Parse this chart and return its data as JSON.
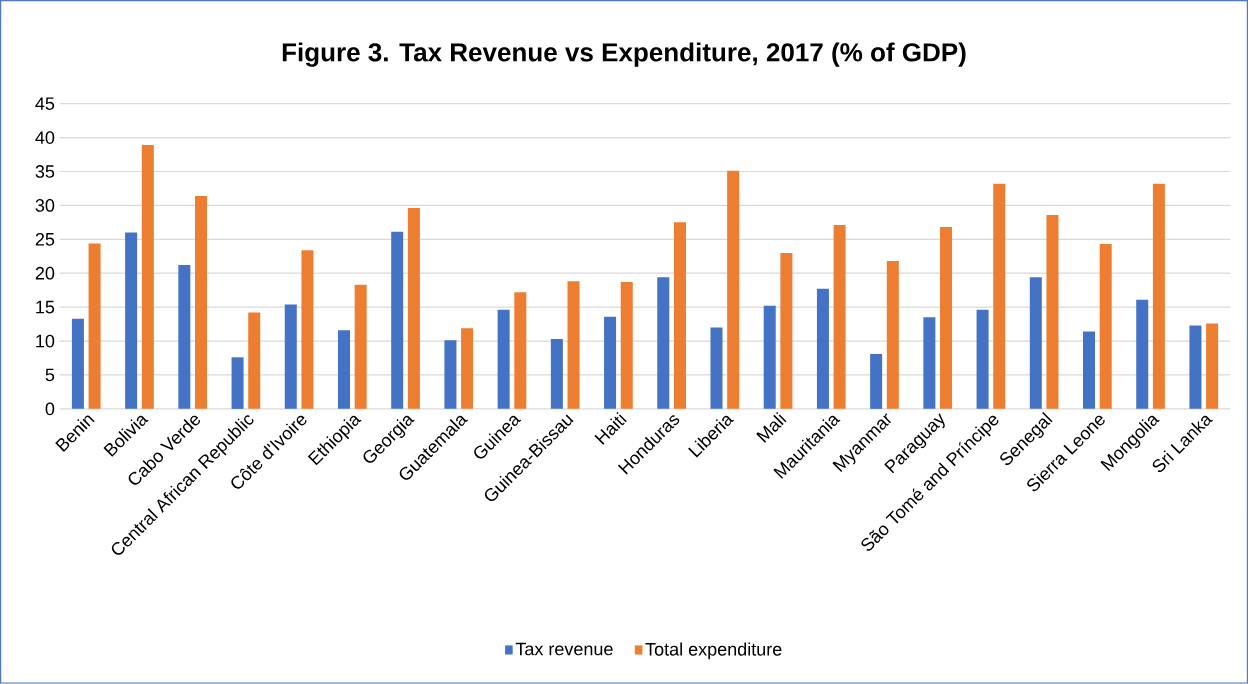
{
  "chart_data": {
    "type": "bar",
    "title": "Figure 3. Tax Revenue vs Expenditure, 2017 (% of GDP)",
    "categories": [
      "Benin",
      "Bolivia",
      "Cabo Verde",
      "Central African Republic",
      "Côte d'Ivoire",
      "Ethiopia",
      "Georgia",
      "Guatemala",
      "Guinea",
      "Guinea-Bissau",
      "Haiti",
      "Honduras",
      "Liberia",
      "Mali",
      "Mauritania",
      "Myanmar",
      "Paraguay",
      "São Tomé and Príncipe",
      "Senegal",
      "Sierra Leone",
      "Mongolia",
      "Sri Lanka"
    ],
    "series": [
      {
        "name": "Tax revenue",
        "color": "#4472c4",
        "values": [
          13.3,
          26,
          21.2,
          7.6,
          15.4,
          11.6,
          26.1,
          10.1,
          14.6,
          10.3,
          13.6,
          19.4,
          12,
          15.2,
          17.7,
          8.1,
          13.5,
          14.6,
          19.4,
          11.4,
          16.1,
          12.3
        ]
      },
      {
        "name": "Total expenditure",
        "color": "#ed7d31",
        "values": [
          24.4,
          38.9,
          31.4,
          14.2,
          23.4,
          18.3,
          29.6,
          11.9,
          17.2,
          18.8,
          18.7,
          27.5,
          35.1,
          23,
          27.1,
          21.8,
          26.8,
          33.2,
          28.6,
          24.3,
          33.2,
          12.6
        ]
      }
    ],
    "ylim": [
      0,
      45
    ],
    "yticks": [
      0,
      5,
      10,
      15,
      20,
      25,
      30,
      35,
      40,
      45
    ],
    "grid": "y",
    "legend": "bottom"
  }
}
